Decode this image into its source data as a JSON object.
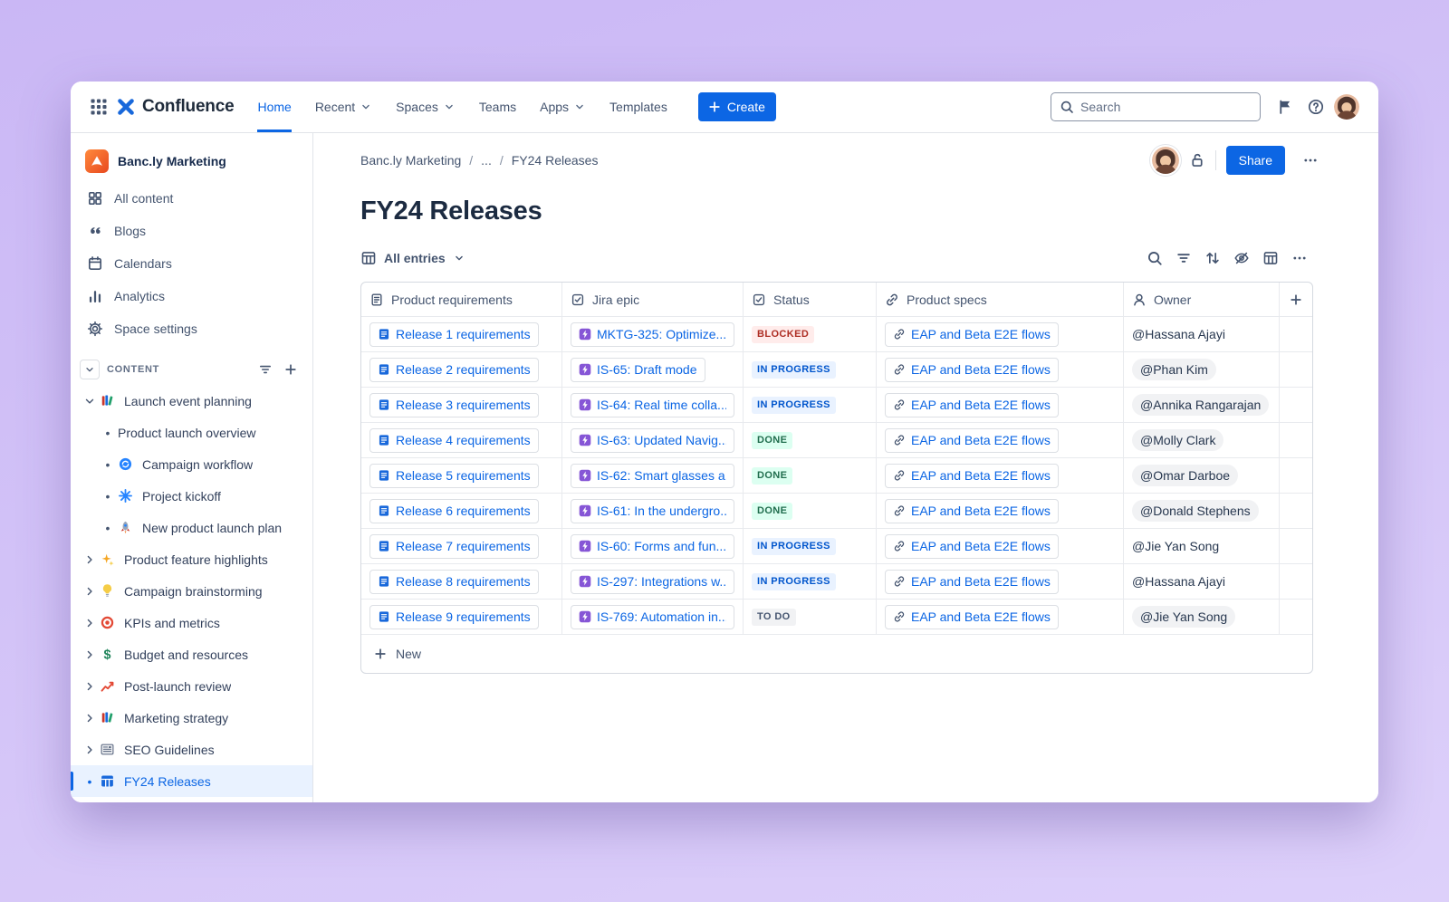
{
  "topbar": {
    "app_name": "Confluence",
    "nav": [
      {
        "label": "Home",
        "active": true,
        "caret": false
      },
      {
        "label": "Recent",
        "active": false,
        "caret": true
      },
      {
        "label": "Spaces",
        "active": false,
        "caret": true
      },
      {
        "label": "Teams",
        "active": false,
        "caret": false
      },
      {
        "label": "Apps",
        "active": false,
        "caret": true
      },
      {
        "label": "Templates",
        "active": false,
        "caret": false
      }
    ],
    "create_label": "Create",
    "search_placeholder": "Search"
  },
  "sidebar": {
    "space_name": "Banc.ly Marketing",
    "items": [
      {
        "label": "All content",
        "icon": "all-content"
      },
      {
        "label": "Blogs",
        "icon": "blogs"
      },
      {
        "label": "Calendars",
        "icon": "calendar"
      },
      {
        "label": "Analytics",
        "icon": "analytics"
      },
      {
        "label": "Space settings",
        "icon": "gear"
      }
    ],
    "content_header": "CONTENT",
    "tree": [
      {
        "label": "Launch event planning",
        "icon": "books",
        "chevron": "down",
        "indent": 0
      },
      {
        "label": "Product launch overview",
        "icon": null,
        "bullet": true,
        "indent": 1
      },
      {
        "label": "Campaign workflow",
        "icon": "workflow",
        "bullet": true,
        "indent": 1
      },
      {
        "label": "Project kickoff",
        "icon": "burst",
        "bullet": true,
        "indent": 1
      },
      {
        "label": "New product launch plan",
        "icon": "rocket",
        "bullet": true,
        "indent": 1
      },
      {
        "label": "Product feature highlights",
        "icon": "sparkle",
        "chevron": "right",
        "indent": 0
      },
      {
        "label": "Campaign brainstorming",
        "icon": "bulb",
        "chevron": "right",
        "indent": 0
      },
      {
        "label": "KPIs and metrics",
        "icon": "target",
        "chevron": "right",
        "indent": 0
      },
      {
        "label": "Budget and resources",
        "icon": "dollar",
        "chevron": "right",
        "indent": 0
      },
      {
        "label": "Post-launch review",
        "icon": "chart-up",
        "chevron": "right",
        "indent": 0
      },
      {
        "label": "Marketing strategy",
        "icon": "books",
        "chevron": "right",
        "indent": 0
      },
      {
        "label": "SEO Guidelines",
        "icon": "news",
        "chevron": "right",
        "indent": 0
      },
      {
        "label": "FY24 Releases",
        "icon": "table-blue",
        "bullet": true,
        "indent": 0,
        "selected": true
      }
    ]
  },
  "main": {
    "breadcrumb": {
      "space": "Banc.ly Marketing",
      "ellipsis": "...",
      "page": "FY24 Releases"
    },
    "share_label": "Share",
    "title": "FY24 Releases",
    "view_label": "All entries",
    "table": {
      "columns": [
        {
          "label": "Product requirements",
          "icon": "doc-outline"
        },
        {
          "label": "Jira epic",
          "icon": "checkbox"
        },
        {
          "label": "Status",
          "icon": "checkbox"
        },
        {
          "label": "Product specs",
          "icon": "link"
        },
        {
          "label": "Owner",
          "icon": "person"
        }
      ],
      "rows": [
        {
          "requirement": "Release 1 requirements",
          "epic": "MKTG-325: Optimize...",
          "status": "BLOCKED",
          "status_kind": "blocked",
          "spec": "EAP and Beta E2E flows",
          "owner": "@Hassana Ajayi",
          "owner_pill": false
        },
        {
          "requirement": "Release 2 requirements",
          "epic": "IS-65: Draft mode",
          "status": "IN PROGRESS",
          "status_kind": "inprogress",
          "spec": "EAP and Beta E2E flows",
          "owner": "@Phan Kim",
          "owner_pill": true
        },
        {
          "requirement": "Release 3 requirements",
          "epic": "IS-64: Real time colla...",
          "status": "IN PROGRESS",
          "status_kind": "inprogress",
          "spec": "EAP and Beta E2E flows",
          "owner": "@Annika Rangarajan",
          "owner_pill": true
        },
        {
          "requirement": "Release 4 requirements",
          "epic": "IS-63: Updated Navig...",
          "status": "DONE",
          "status_kind": "done",
          "spec": "EAP and Beta E2E flows",
          "owner": "@Molly Clark",
          "owner_pill": true
        },
        {
          "requirement": "Release 5 requirements",
          "epic": "IS-62: Smart glasses a...",
          "status": "DONE",
          "status_kind": "done",
          "spec": "EAP and Beta E2E flows",
          "owner": "@Omar Darboe",
          "owner_pill": true
        },
        {
          "requirement": "Release 6 requirements",
          "epic": "IS-61: In the undergro...",
          "status": "DONE",
          "status_kind": "done",
          "spec": "EAP and Beta E2E flows",
          "owner": "@Donald Stephens",
          "owner_pill": true
        },
        {
          "requirement": "Release 7 requirements",
          "epic": "IS-60: Forms and fun...",
          "status": "IN PROGRESS",
          "status_kind": "inprogress",
          "spec": "EAP and Beta E2E flows",
          "owner": "@Jie Yan Song",
          "owner_pill": false
        },
        {
          "requirement": "Release 8 requirements",
          "epic": "IS-297: Integrations w...",
          "status": "IN PROGRESS",
          "status_kind": "inprogress",
          "spec": "EAP and Beta E2E flows",
          "owner": "@Hassana Ajayi",
          "owner_pill": false
        },
        {
          "requirement": "Release 9 requirements",
          "epic": "IS-769: Automation in...",
          "status": "TO DO",
          "status_kind": "todo",
          "spec": "EAP and Beta E2E flows",
          "owner": "@Jie Yan Song",
          "owner_pill": true
        }
      ],
      "new_label": "New"
    }
  },
  "colors": {
    "accent_blue": "#0c66e4",
    "epic_purple": "#8656d6",
    "blocked_bg": "#ffeceb",
    "blocked_text": "#ae2e24",
    "inprogress_bg": "#e9f2ff",
    "inprogress_text": "#0055cc",
    "done_bg": "#dcfff1",
    "done_text": "#216e4e",
    "todo_bg": "#f1f2f4",
    "todo_text": "#44546f"
  }
}
